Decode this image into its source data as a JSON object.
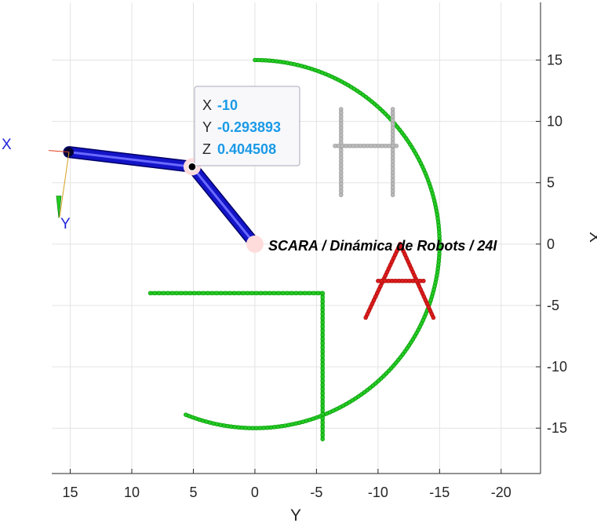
{
  "chart_data": {
    "type": "scatter",
    "title": "",
    "xlabel": "Y",
    "ylabel": "X",
    "xlim": [
      16.5,
      -23.2
    ],
    "ylim": [
      -18.7,
      19.7
    ],
    "x_reversed": true,
    "y_axis_location": "right",
    "grid": true,
    "x_ticks": [
      15,
      10,
      5,
      0,
      -5,
      -10,
      -15,
      -20
    ],
    "y_ticks": [
      15,
      10,
      5,
      0,
      -5,
      -10,
      -15
    ],
    "annotation": "SCARA / Dinámica de Robots / 24I",
    "robot": {
      "color": "#1414c8",
      "links": [
        {
          "from": [
            0,
            0
          ],
          "to": [
            5.1,
            6.3
          ]
        },
        {
          "from": [
            5.1,
            6.3
          ],
          "to": [
            15.1,
            7.5
          ]
        }
      ],
      "joints": [
        [
          0,
          0
        ],
        [
          5.1,
          6.3
        ]
      ],
      "end_effector": [
        15.1,
        7.5
      ],
      "joint_color": "#ffdcdc"
    },
    "frame": {
      "origin": [
        15.1,
        7.5
      ],
      "x_label": "X",
      "y_label": "Y"
    },
    "letters": [
      {
        "name": "G",
        "color": "#22cc22",
        "segments": [
          {
            "kind": "arc",
            "cx": 0,
            "cy": 0,
            "r": 15,
            "start_deg": 90,
            "end_deg": 292,
            "points": 181
          },
          {
            "kind": "line",
            "from": [
              8.5,
              -4
            ],
            "to": [
              -5.5,
              -4
            ],
            "points": 40
          },
          {
            "kind": "line",
            "from": [
              -5.5,
              -4
            ],
            "to": [
              -5.5,
              -15.9
            ],
            "points": 36
          }
        ]
      },
      {
        "name": "H",
        "color": "#bbbbbb",
        "segments": [
          {
            "kind": "line",
            "from": [
              -7,
              11
            ],
            "to": [
              -7,
              4
            ],
            "points": 24
          },
          {
            "kind": "line",
            "from": [
              -11.2,
              11
            ],
            "to": [
              -11.2,
              4
            ],
            "points": 24
          },
          {
            "kind": "line",
            "from": [
              -6.5,
              8
            ],
            "to": [
              -11.5,
              8
            ],
            "points": 18
          }
        ]
      },
      {
        "name": "A",
        "color": "#e01c1c",
        "segments": [
          {
            "kind": "line",
            "from": [
              -9,
              -6
            ],
            "to": [
              -11.8,
              0
            ],
            "points": 22
          },
          {
            "kind": "line",
            "from": [
              -11.8,
              0
            ],
            "to": [
              -14.5,
              -6
            ],
            "points": 22
          },
          {
            "kind": "line",
            "from": [
              -10,
              -3
            ],
            "to": [
              -13.7,
              -3
            ],
            "points": 14
          }
        ]
      }
    ],
    "datatip": {
      "point": [
        5.1,
        6.3
      ],
      "rows": [
        {
          "key": "X",
          "value": "-10"
        },
        {
          "key": "Y",
          "value": "-0.293893"
        },
        {
          "key": "Z",
          "value": "0.404508"
        }
      ]
    }
  }
}
